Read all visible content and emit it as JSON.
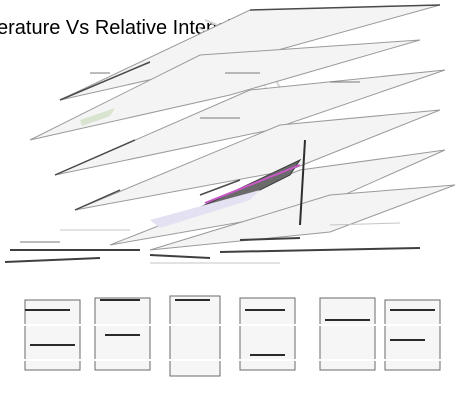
{
  "chart_data": {
    "type": "line",
    "title": "erature Vs Relative Intensity",
    "xlabel": "",
    "ylabel": "",
    "series": []
  },
  "colors": {
    "background": "#ffffff",
    "title_text": "#000000",
    "stroke_dark": "#3a3a3a",
    "stroke_gray": "#8a8a8a",
    "stroke_light": "#c8c8c8",
    "fill_light": "#ebebeb",
    "accent_green": "#b5c9a8",
    "accent_magenta": "#c857c8",
    "accent_lavender": "#b9b4d8"
  }
}
